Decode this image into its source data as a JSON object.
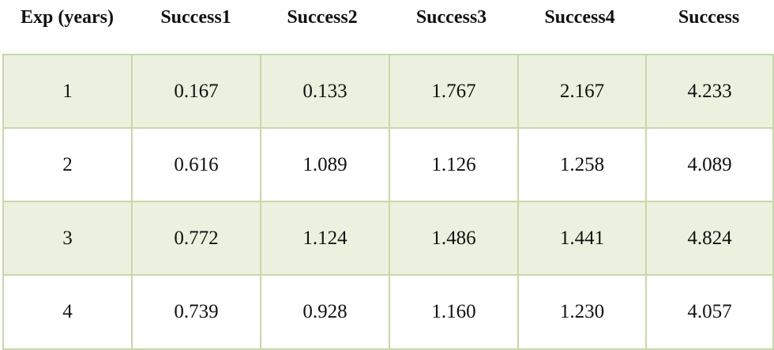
{
  "table": {
    "headers": [
      "Exp (years)",
      "Success1",
      "Success2",
      "Success3",
      "Success4",
      "Success"
    ],
    "rows": [
      [
        "1",
        "0.167",
        "0.133",
        "1.767",
        "2.167",
        "4.233"
      ],
      [
        "2",
        "0.616",
        "1.089",
        "1.126",
        "1.258",
        "4.089"
      ],
      [
        "3",
        "0.772",
        "1.124",
        "1.486",
        "1.441",
        "4.824"
      ],
      [
        "4",
        "0.739",
        "0.928",
        "1.160",
        "1.230",
        "4.057"
      ]
    ],
    "colors": {
      "border": "#c5d9a8",
      "shaded_row": "#ebf1de",
      "plain_row": "#ffffff"
    }
  }
}
